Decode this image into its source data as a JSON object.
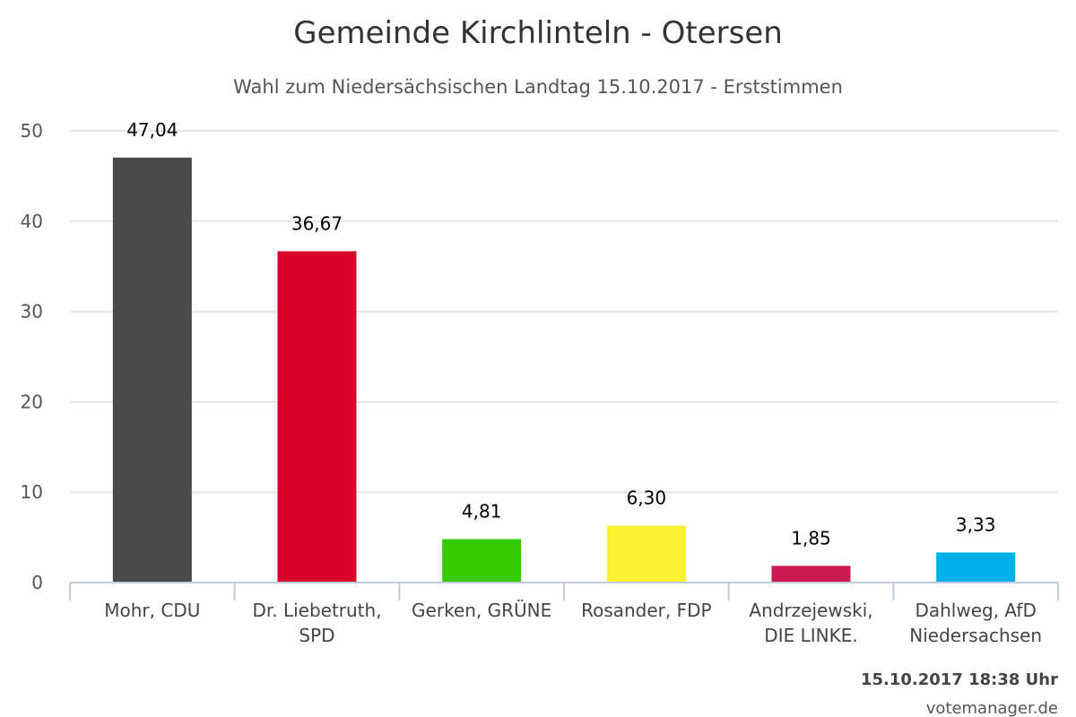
{
  "chart_data": {
    "type": "bar",
    "title": "Gemeinde Kirchlinteln - Otersen",
    "subtitle": "Wahl zum Niedersächsischen Landtag 15.10.2017 - Erststimmen",
    "categories": [
      [
        "Mohr, CDU"
      ],
      [
        "Dr. Liebetruth,",
        "SPD"
      ],
      [
        "Gerken, GRÜNE"
      ],
      [
        "Rosander, FDP"
      ],
      [
        "Andrzejewski,",
        "DIE LINKE."
      ],
      [
        "Dahlweg, AfD",
        "Niedersachsen"
      ]
    ],
    "values": [
      47.04,
      36.67,
      4.81,
      6.3,
      1.85,
      3.33
    ],
    "value_labels": [
      "47,04",
      "36,67",
      "4,81",
      "6,30",
      "1,85",
      "3,33"
    ],
    "colors": [
      "#4a4a4a",
      "#d8002b",
      "#33cc00",
      "#fbef30",
      "#cc1b52",
      "#00b0ea"
    ],
    "ylim": [
      0,
      50
    ],
    "yticks": [
      0,
      10,
      20,
      30,
      40,
      50
    ],
    "grid": true,
    "legend": "none"
  },
  "footer": {
    "timestamp": "15.10.2017 18:38 Uhr",
    "source": "votemanager.de"
  }
}
